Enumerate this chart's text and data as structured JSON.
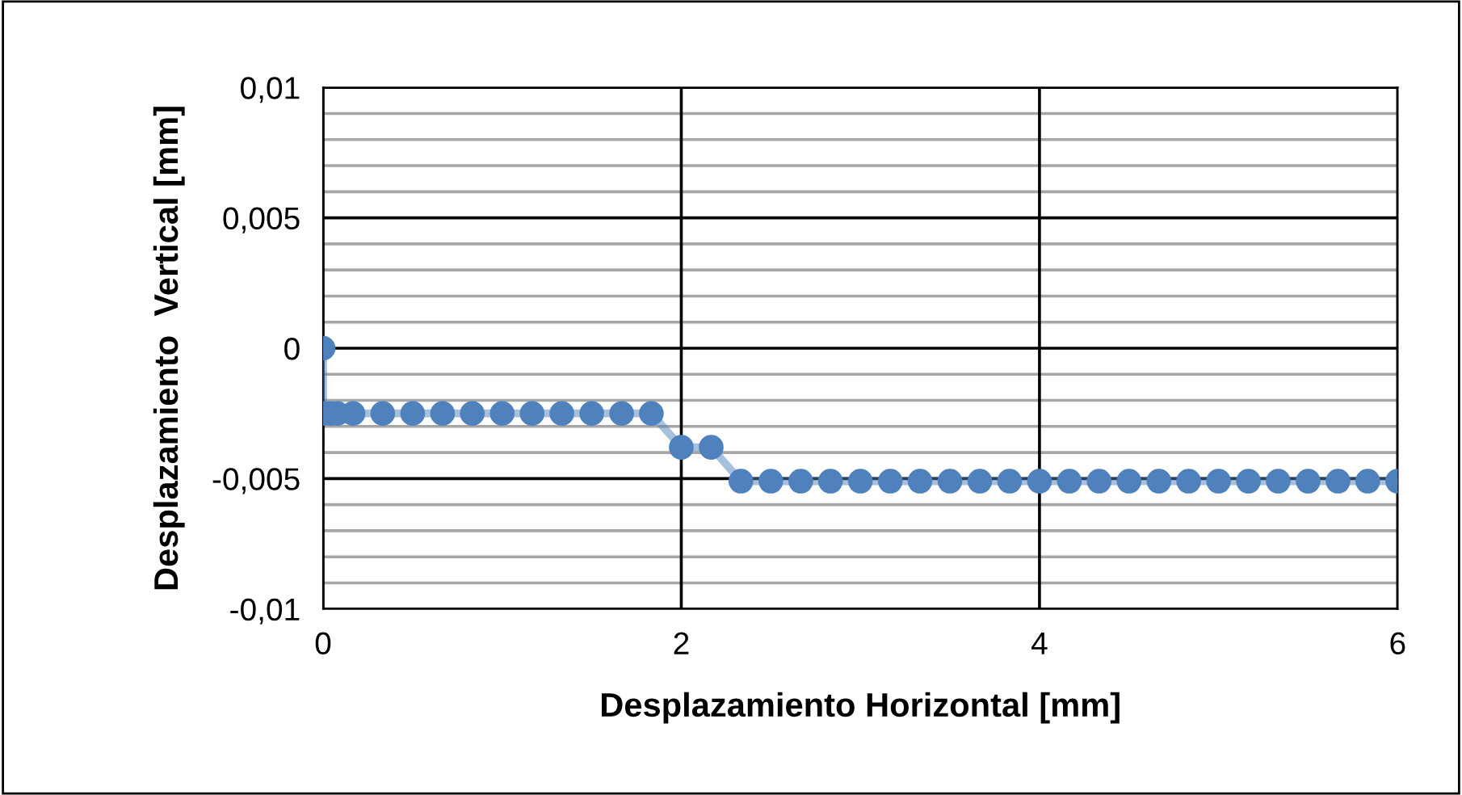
{
  "chart_data": {
    "type": "line",
    "xlabel": "Desplazamiento Horizontal [mm]",
    "ylabel": "Desplazamiento  Vertical [mm]",
    "x": [
      0,
      0,
      0.04,
      0.08,
      0.167,
      0.333,
      0.5,
      0.667,
      0.833,
      1,
      1.167,
      1.333,
      1.5,
      1.667,
      1.833,
      2,
      2.167,
      2.333,
      2.5,
      2.667,
      2.833,
      3,
      3.167,
      3.333,
      3.5,
      3.667,
      3.833,
      4,
      4.167,
      4.333,
      4.5,
      4.667,
      4.833,
      5,
      5.167,
      5.333,
      5.5,
      5.667,
      5.833,
      6
    ],
    "series": [
      {
        "color": "#4f81bd",
        "values": [
          0,
          -0.0025,
          -0.0025,
          -0.0025,
          -0.0025,
          -0.0025,
          -0.0025,
          -0.0025,
          -0.0025,
          -0.0025,
          -0.0025,
          -0.0025,
          -0.0025,
          -0.0025,
          -0.0025,
          -0.0038,
          -0.0038,
          -0.0051,
          -0.0051,
          -0.0051,
          -0.0051,
          -0.0051,
          -0.0051,
          -0.0051,
          -0.0051,
          -0.0051,
          -0.0051,
          -0.0051,
          -0.0051,
          -0.0051,
          -0.0051,
          -0.0051,
          -0.0051,
          -0.0051,
          -0.0051,
          -0.0051,
          -0.0051,
          -0.0051,
          -0.0051,
          -0.0051
        ]
      }
    ],
    "xlim": [
      0,
      6
    ],
    "xticks": [
      0,
      2,
      4,
      6
    ],
    "ylim": [
      -0.01,
      0.01
    ],
    "yticks": [
      {
        "value": -0.01,
        "label": "-0,01"
      },
      {
        "value": -0.009,
        "label": null
      },
      {
        "value": -0.008,
        "label": null
      },
      {
        "value": -0.007,
        "label": null
      },
      {
        "value": -0.006,
        "label": null
      },
      {
        "value": -0.005,
        "label": "-0,005"
      },
      {
        "value": -0.004,
        "label": null
      },
      {
        "value": -0.003,
        "label": null
      },
      {
        "value": -0.002,
        "label": null
      },
      {
        "value": -0.001,
        "label": null
      },
      {
        "value": 0,
        "label": "0"
      },
      {
        "value": 0.001,
        "label": null
      },
      {
        "value": 0.002,
        "label": null
      },
      {
        "value": 0.003,
        "label": null
      },
      {
        "value": 0.004,
        "label": null
      },
      {
        "value": 0.005,
        "label": "0,005"
      },
      {
        "value": 0.006,
        "label": null
      },
      {
        "value": 0.007,
        "label": null
      },
      {
        "value": 0.008,
        "label": null
      },
      {
        "value": 0.009,
        "label": null
      },
      {
        "value": 0.01,
        "label": "0,01"
      }
    ],
    "grid": true,
    "marker": "circle",
    "line_style": "solid",
    "legend": false
  }
}
